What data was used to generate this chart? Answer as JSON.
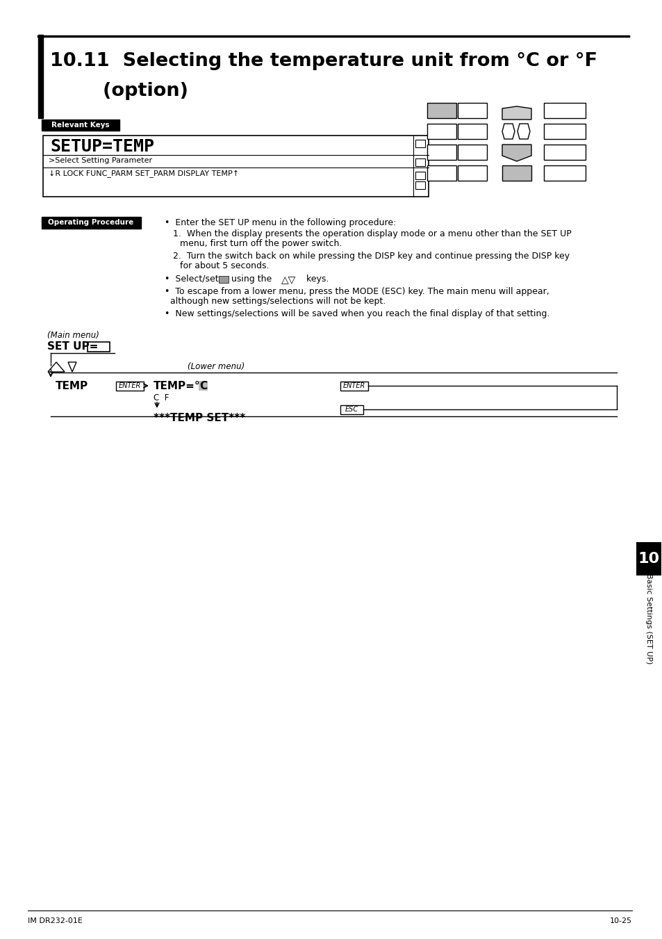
{
  "title_line1": "10.11  Selecting the temperature unit from °C or °F",
  "title_line2": "        (option)",
  "relevant_keys_label": "Relevant Keys",
  "operating_procedure_label": "Operating Procedure",
  "setup_display_line1": "SETUP=TEMP",
  "setup_display_line2": ">Select Setting Parameter",
  "setup_display_line3": "↓R LOCK FUNC_PARM SET_PARM DISPLAY TEMP↑",
  "main_menu_label": "(Main menu)",
  "setup_eq": "SET UP=",
  "lower_menu_label": "(Lower menu)",
  "temp_label": "TEMP",
  "enter_label": "ENTER",
  "temp_eq_c": "TEMP=°C",
  "cf_label": "C  F",
  "temp_set_label": "***TEMP SET***",
  "esc_label": "ESC",
  "footer_left": "IM DR232-01E",
  "footer_right": "10-25",
  "chapter_tab": "10",
  "chapter_tab_label": "Basic Settings (SET UP)",
  "bg_color": "#ffffff",
  "text_color": "#000000"
}
